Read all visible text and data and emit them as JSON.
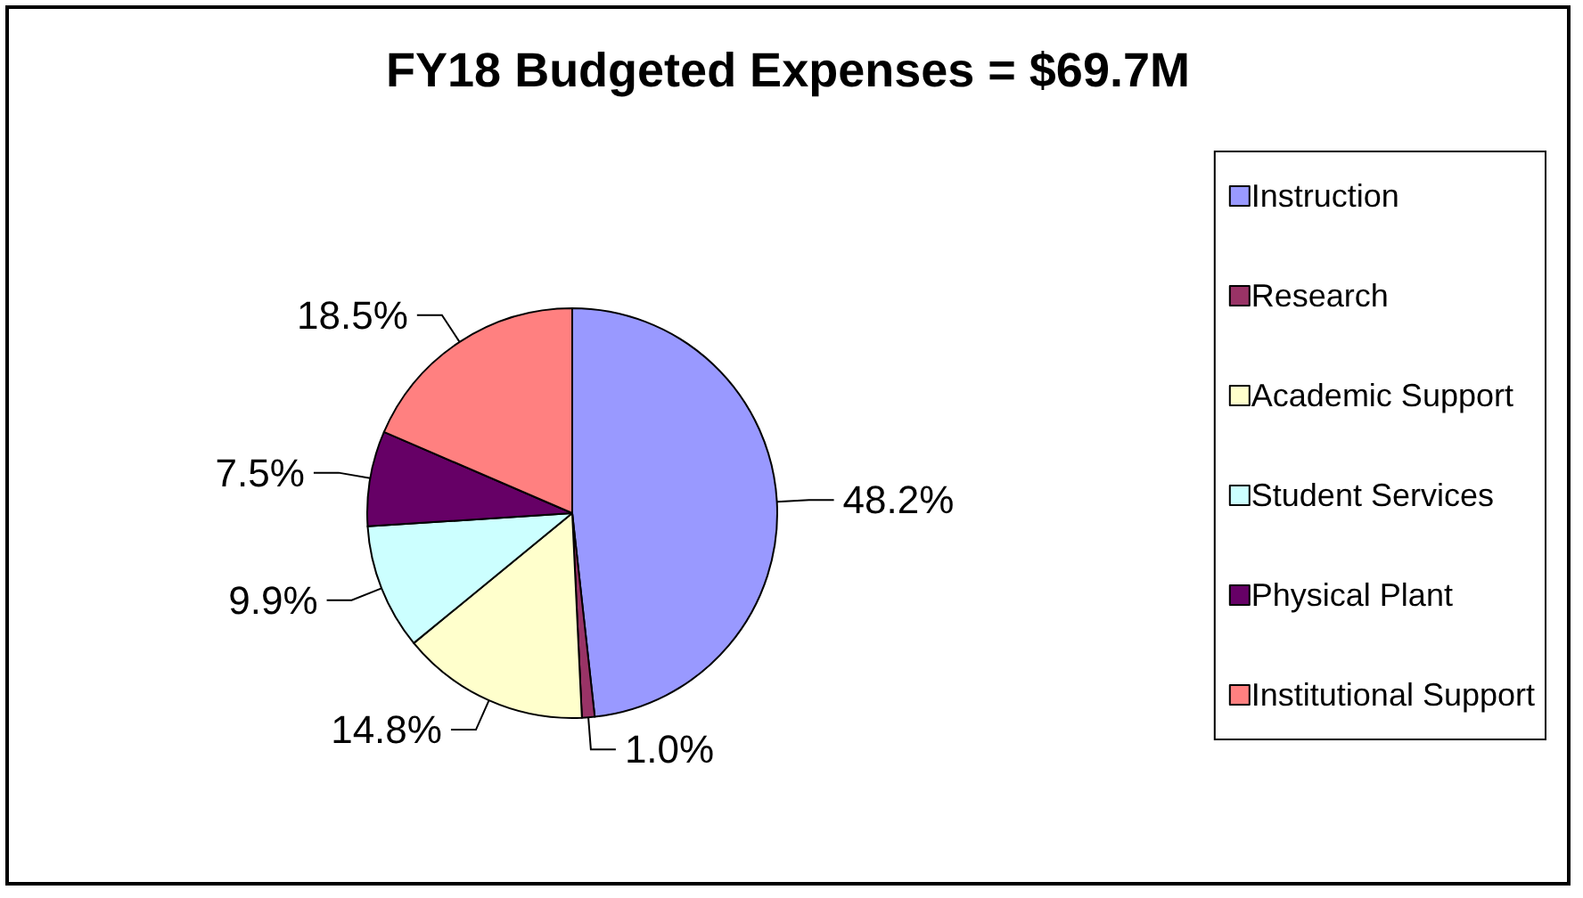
{
  "chart_data": {
    "type": "pie",
    "title": "FY18 Budgeted Expenses = $69.7M",
    "categories": [
      "Instruction",
      "Research",
      "Academic Support",
      "Student Services",
      "Physical Plant",
      "Institutional Support"
    ],
    "values": [
      48.2,
      1.0,
      14.8,
      9.9,
      7.5,
      18.5
    ],
    "colors": [
      "#9999ff",
      "#993366",
      "#ffffcc",
      "#ccffff",
      "#660066",
      "#ff8080"
    ],
    "value_labels": [
      "48.2%",
      "1.0%",
      "14.8%",
      "9.9%",
      "7.5%",
      "18.5%"
    ],
    "legend": "right"
  }
}
